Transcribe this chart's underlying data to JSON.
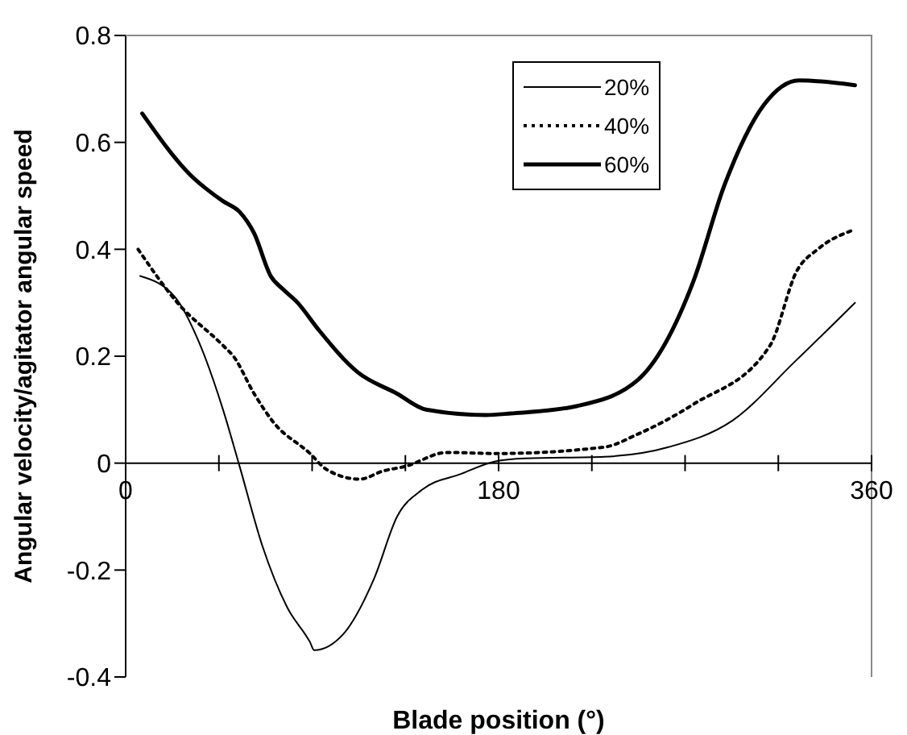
{
  "chart_data": {
    "type": "line",
    "xlabel": "Blade position (°)",
    "ylabel": "Angular velocity/agitator angular speed",
    "xlim": [
      0,
      360
    ],
    "xticks": [
      0,
      {
        "value": 45,
        "label": null
      },
      {
        "value": 90,
        "label": null
      },
      {
        "value": 135,
        "label": null
      },
      180,
      {
        "value": 225,
        "label": null
      },
      {
        "value": 270,
        "label": null
      },
      {
        "value": 315,
        "label": null
      },
      360
    ],
    "ylim": [
      -0.4,
      0.8
    ],
    "yticks": [
      -0.4,
      -0.2,
      0,
      0.2,
      0.4,
      0.6,
      0.8
    ],
    "legend": "top right",
    "marker": "none",
    "series": [
      {
        "name": "20%",
        "color": "#000000",
        "line_style": "solid",
        "x": [
          7,
          24,
          35,
          47,
          55,
          66,
          78,
          89,
          91,
          105,
          120,
          131,
          143,
          162,
          178,
          193,
          231,
          262,
          293,
          323,
          352
        ],
        "values": [
          0.35,
          0.31,
          0.23,
          0.1,
          -0.006,
          -0.155,
          -0.27,
          -0.335,
          -0.35,
          -0.32,
          -0.215,
          -0.1,
          -0.05,
          -0.02,
          0.003,
          0.009,
          0.012,
          0.03,
          0.08,
          0.19,
          0.3
        ]
      },
      {
        "name": "40%",
        "color": "#000000",
        "line_style": "dotted",
        "x": [
          6,
          25,
          47,
          52,
          62,
          71,
          89,
          97,
          113,
          124,
          135,
          155,
          179,
          231,
          247,
          274,
          311,
          324,
          334,
          351
        ],
        "values": [
          0.4,
          0.3,
          0.22,
          0.2,
          0.13,
          0.078,
          0.018,
          -0.012,
          -0.03,
          -0.015,
          -0.006,
          0.02,
          0.018,
          0.03,
          0.054,
          0.11,
          0.22,
          0.36,
          0.4,
          0.436
        ]
      },
      {
        "name": "60%",
        "color": "#000000",
        "line_style": "solid",
        "x": [
          8,
          31,
          47,
          55,
          62,
          70,
          76,
          83,
          93,
          112,
          131,
          145,
          174,
          186,
          218,
          247,
          274,
          289,
          308,
          325,
          352
        ],
        "values": [
          0.654,
          0.54,
          0.49,
          0.47,
          0.43,
          0.35,
          0.325,
          0.3,
          0.25,
          0.17,
          0.13,
          0.1,
          0.09,
          0.093,
          0.107,
          0.155,
          0.34,
          0.52,
          0.67,
          0.716,
          0.707
        ]
      }
    ]
  }
}
